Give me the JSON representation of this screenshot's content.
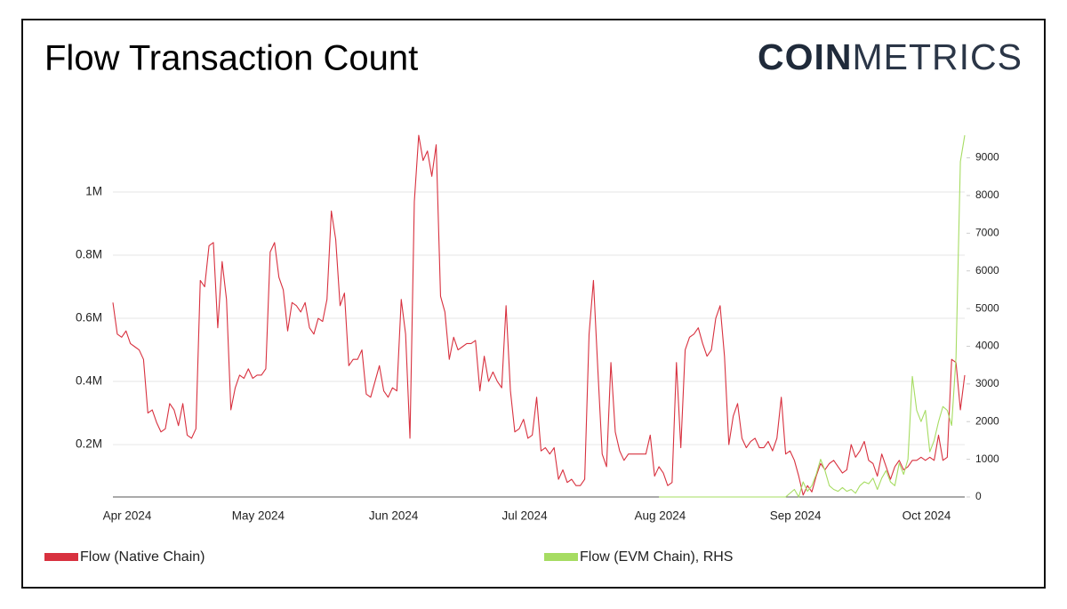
{
  "chart_data": {
    "type": "line",
    "title": "Flow Transaction Count",
    "logo_bold": "COIN",
    "logo_light": "METRICS",
    "categories": [
      "Apr 2024",
      null,
      null,
      null,
      null,
      null,
      null,
      null,
      null,
      null,
      null,
      null,
      null,
      null,
      null,
      null,
      null,
      null,
      null,
      null,
      null,
      null,
      null,
      null,
      null,
      null,
      null,
      null,
      null,
      null,
      "May 2024",
      null,
      null,
      null,
      null,
      null,
      null,
      null,
      null,
      null,
      null,
      null,
      null,
      null,
      null,
      null,
      null,
      null,
      null,
      null,
      null,
      null,
      null,
      null,
      null,
      null,
      null,
      null,
      null,
      null,
      null,
      "Jun 2024",
      null,
      null,
      null,
      null,
      null,
      null,
      null,
      null,
      null,
      null,
      null,
      null,
      null,
      null,
      null,
      null,
      null,
      null,
      null,
      null,
      null,
      null,
      null,
      null,
      null,
      null,
      null,
      null,
      null,
      "Jul 2024",
      null,
      null,
      null,
      null,
      null,
      null,
      null,
      null,
      null,
      null,
      null,
      null,
      null,
      null,
      null,
      null,
      null,
      null,
      null,
      null,
      null,
      null,
      null,
      null,
      null,
      null,
      null,
      null,
      null,
      null,
      "Aug 2024",
      null,
      null,
      null,
      null,
      null,
      null,
      null,
      null,
      null,
      null,
      null,
      null,
      null,
      null,
      null,
      null,
      null,
      null,
      null,
      null,
      null,
      null,
      null,
      null,
      null,
      null,
      null,
      null,
      null,
      null,
      "Sep 2024",
      null,
      null,
      null,
      null,
      null,
      null,
      null,
      null,
      null,
      null,
      null,
      null,
      null,
      null,
      null,
      null,
      null,
      null,
      null,
      null,
      null,
      null,
      null,
      null,
      null,
      null,
      null,
      null,
      null,
      "Oct 2024",
      null,
      null,
      null,
      null,
      null,
      null,
      null,
      null,
      null,
      null,
      null,
      null
    ],
    "series": [
      {
        "name": "Flow (Native Chain)",
        "color": "#d8313f",
        "values": [
          0.65,
          0.55,
          0.54,
          0.56,
          0.52,
          0.51,
          0.5,
          0.47,
          0.3,
          0.31,
          0.27,
          0.24,
          0.25,
          0.33,
          0.31,
          0.26,
          0.33,
          0.23,
          0.22,
          0.25,
          0.72,
          0.7,
          0.83,
          0.84,
          0.57,
          0.78,
          0.66,
          0.31,
          0.38,
          0.42,
          0.41,
          0.44,
          0.41,
          0.42,
          0.42,
          0.44,
          0.81,
          0.84,
          0.73,
          0.69,
          0.56,
          0.65,
          0.64,
          0.62,
          0.65,
          0.57,
          0.55,
          0.6,
          0.59,
          0.66,
          0.94,
          0.85,
          0.64,
          0.68,
          0.45,
          0.47,
          0.47,
          0.5,
          0.36,
          0.35,
          0.4,
          0.45,
          0.37,
          0.35,
          0.38,
          0.37,
          0.66,
          0.55,
          0.22,
          0.97,
          1.18,
          1.1,
          1.13,
          1.05,
          1.15,
          0.67,
          0.62,
          0.47,
          0.54,
          0.5,
          0.51,
          0.52,
          0.52,
          0.53,
          0.37,
          0.48,
          0.4,
          0.43,
          0.4,
          0.38,
          0.64,
          0.37,
          0.24,
          0.25,
          0.28,
          0.22,
          0.23,
          0.35,
          0.18,
          0.19,
          0.17,
          0.19,
          0.09,
          0.12,
          0.08,
          0.09,
          0.07,
          0.07,
          0.09,
          0.55,
          0.72,
          0.44,
          0.17,
          0.13,
          0.46,
          0.24,
          0.18,
          0.15,
          0.17,
          0.17,
          0.17,
          0.17,
          0.17,
          0.23,
          0.1,
          0.13,
          0.11,
          0.07,
          0.08,
          0.46,
          0.19,
          0.5,
          0.54,
          0.55,
          0.57,
          0.52,
          0.48,
          0.5,
          0.6,
          0.64,
          0.48,
          0.2,
          0.29,
          0.33,
          0.22,
          0.19,
          0.21,
          0.22,
          0.19,
          0.19,
          0.21,
          0.18,
          0.22,
          0.35,
          0.17,
          0.18,
          0.15,
          0.1,
          0.04,
          0.07,
          0.05,
          0.1,
          0.14,
          0.12,
          0.14,
          0.15,
          0.13,
          0.11,
          0.12,
          0.2,
          0.16,
          0.18,
          0.21,
          0.15,
          0.14,
          0.1,
          0.17,
          0.13,
          0.09,
          0.13,
          0.15,
          0.12,
          0.13,
          0.15,
          0.15,
          0.16,
          0.15,
          0.16,
          0.15,
          0.23,
          0.15,
          0.16,
          0.47,
          0.46,
          0.31,
          0.42
        ]
      },
      {
        "name": "Flow (EVM Chain), RHS",
        "color": "#a6dc62",
        "axis": "y2",
        "values": [
          null,
          null,
          null,
          null,
          null,
          null,
          null,
          null,
          null,
          null,
          null,
          null,
          null,
          null,
          null,
          null,
          null,
          null,
          null,
          null,
          null,
          null,
          null,
          null,
          null,
          null,
          null,
          null,
          null,
          null,
          null,
          null,
          null,
          null,
          null,
          null,
          null,
          null,
          null,
          null,
          null,
          null,
          null,
          null,
          null,
          null,
          null,
          null,
          null,
          null,
          null,
          null,
          null,
          null,
          null,
          null,
          null,
          null,
          null,
          null,
          null,
          null,
          null,
          null,
          null,
          null,
          null,
          null,
          null,
          null,
          null,
          null,
          null,
          null,
          null,
          null,
          null,
          null,
          null,
          null,
          null,
          null,
          null,
          null,
          null,
          null,
          null,
          null,
          null,
          null,
          null,
          null,
          null,
          null,
          null,
          null,
          null,
          null,
          null,
          null,
          null,
          null,
          null,
          null,
          null,
          null,
          null,
          null,
          null,
          null,
          null,
          null,
          null,
          null,
          null,
          null,
          null,
          null,
          null,
          null,
          null,
          null,
          null,
          null,
          null,
          0,
          0,
          0,
          0,
          0,
          0,
          0,
          0,
          0,
          0,
          0,
          0,
          0,
          0,
          0,
          0,
          0,
          0,
          0,
          0,
          0,
          0,
          0,
          0,
          0,
          0,
          0,
          0,
          0,
          0,
          100,
          200,
          0,
          400,
          150,
          300,
          600,
          1000,
          700,
          300,
          200,
          150,
          250,
          150,
          200,
          100,
          300,
          400,
          350,
          500,
          200,
          500,
          700,
          400,
          300,
          900,
          600,
          1000,
          3200,
          2300,
          2000,
          2300,
          1200,
          1500,
          2000,
          2400,
          2300,
          1900,
          3700,
          8900,
          9600
        ]
      }
    ],
    "ylim": [
      0.034,
      1.186
    ],
    "yticks": [
      {
        "value": 0.2,
        "label": "0.2M"
      },
      {
        "value": 0.4,
        "label": "0.4M"
      },
      {
        "value": 0.6,
        "label": "0.6M"
      },
      {
        "value": 0.8,
        "label": "0.8M"
      },
      {
        "value": 1,
        "label": "1M"
      }
    ],
    "y2lim": [
      0,
      9650
    ],
    "y2ticks": [
      0,
      1000,
      2000,
      3000,
      4000,
      5000,
      6000,
      7000,
      8000,
      9000
    ],
    "grid": true,
    "legend": "bottom"
  }
}
